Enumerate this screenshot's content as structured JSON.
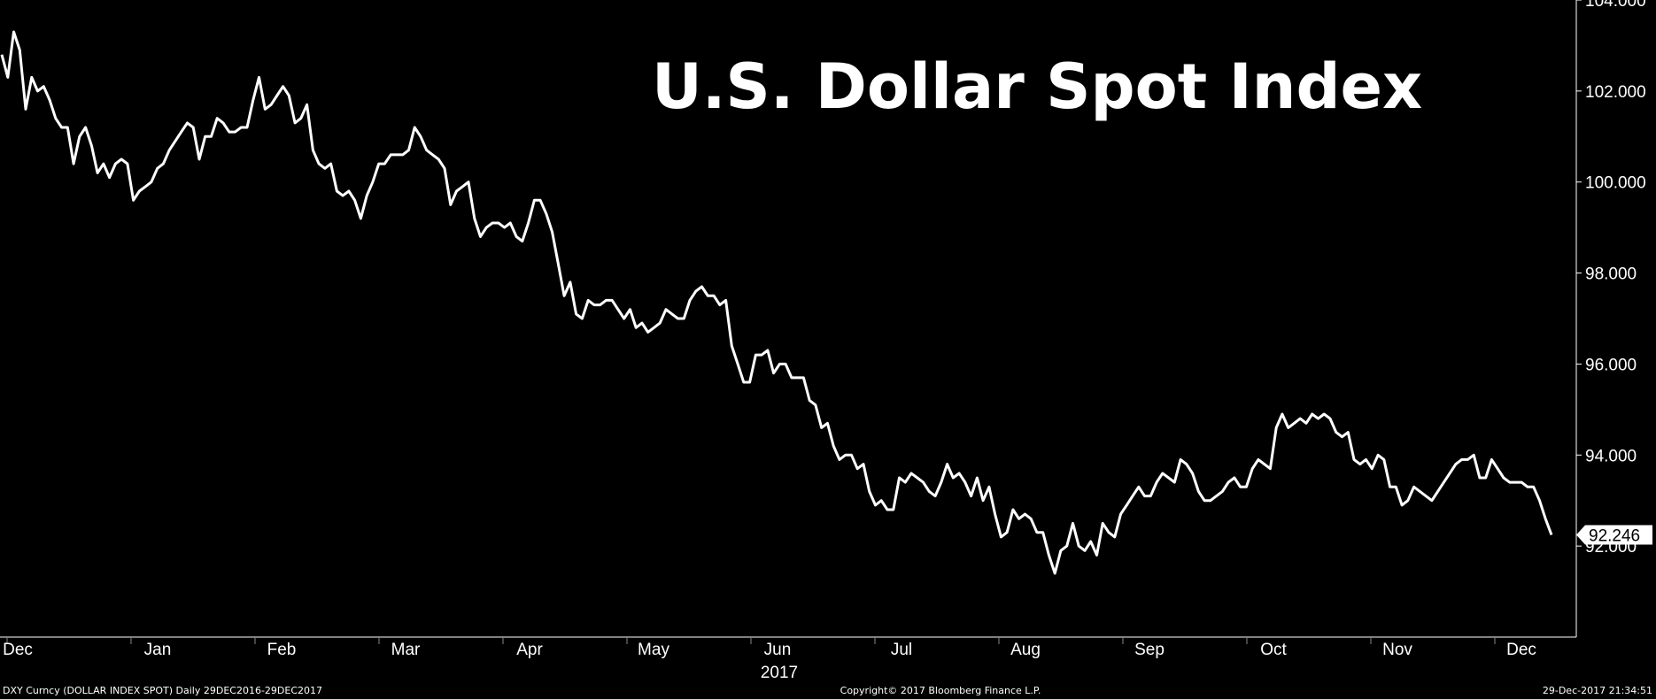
{
  "chart_data": {
    "type": "line",
    "title": "U.S. Dollar Spot Index",
    "year_label": "2017",
    "ylim": [
      90,
      104
    ],
    "y_ticks": [
      {
        "value": 92,
        "label": "92.000"
      },
      {
        "value": 94,
        "label": "94.000"
      },
      {
        "value": 96,
        "label": "96.000"
      },
      {
        "value": 98,
        "label": "98.000"
      },
      {
        "value": 100,
        "label": "100.000"
      },
      {
        "value": 102,
        "label": "102.000"
      },
      {
        "value": 104,
        "label": "104.000"
      }
    ],
    "x_ticks": [
      "Dec",
      "Jan",
      "Feb",
      "Mar",
      "Apr",
      "May",
      "Jun",
      "Jul",
      "Aug",
      "Sep",
      "Oct",
      "Nov",
      "Dec"
    ],
    "last_value_label": "92.246",
    "grid": false,
    "series": [
      {
        "values": [
          102.8,
          102.3,
          103.3,
          102.9,
          101.6,
          102.3,
          102.0,
          102.1,
          101.8,
          101.4,
          101.2,
          101.2,
          100.4,
          101.0,
          101.2,
          100.8,
          100.2,
          100.4,
          100.1,
          100.4,
          100.5,
          100.4,
          99.6,
          99.8,
          99.9,
          100.0,
          100.3,
          100.4,
          100.7,
          100.9,
          101.1,
          101.3,
          101.2,
          100.5,
          101.0,
          101.0,
          101.4,
          101.3,
          101.1,
          101.1,
          101.2,
          101.2,
          101.8,
          102.3,
          101.6,
          101.7,
          101.9,
          102.1,
          101.9,
          101.3,
          101.4,
          101.7,
          100.7,
          100.4,
          100.3,
          100.4,
          99.8,
          99.7,
          99.8,
          99.6,
          99.2,
          99.7,
          100.0,
          100.4,
          100.4,
          100.6,
          100.6,
          100.6,
          100.7,
          101.2,
          101.0,
          100.7,
          100.6,
          100.5,
          100.3,
          99.5,
          99.8,
          99.9,
          100.0,
          99.2,
          98.8,
          99.0,
          99.1,
          99.1,
          99.0,
          99.1,
          98.8,
          98.7,
          99.1,
          99.6,
          99.6,
          99.3,
          98.9,
          98.2,
          97.5,
          97.8,
          97.1,
          97.0,
          97.4,
          97.3,
          97.3,
          97.4,
          97.4,
          97.2,
          97.0,
          97.2,
          96.8,
          96.9,
          96.7,
          96.8,
          96.9,
          97.2,
          97.1,
          97.0,
          97.0,
          97.4,
          97.6,
          97.7,
          97.5,
          97.5,
          97.3,
          97.4,
          96.4,
          96.0,
          95.6,
          95.6,
          96.2,
          96.2,
          96.3,
          95.8,
          96.0,
          96.0,
          95.7,
          95.7,
          95.7,
          95.2,
          95.1,
          94.6,
          94.7,
          94.2,
          93.9,
          94.0,
          94.0,
          93.7,
          93.8,
          93.2,
          92.9,
          93.0,
          92.8,
          92.8,
          93.5,
          93.4,
          93.6,
          93.5,
          93.4,
          93.2,
          93.1,
          93.4,
          93.8,
          93.5,
          93.6,
          93.4,
          93.1,
          93.5,
          93.0,
          93.3,
          92.7,
          92.2,
          92.3,
          92.8,
          92.6,
          92.7,
          92.6,
          92.3,
          92.3,
          91.8,
          91.4,
          91.9,
          92.0,
          92.5,
          92.0,
          91.9,
          92.1,
          91.8,
          92.5,
          92.3,
          92.2,
          92.7,
          92.9,
          93.1,
          93.3,
          93.1,
          93.1,
          93.4,
          93.6,
          93.5,
          93.4,
          93.9,
          93.8,
          93.6,
          93.2,
          93.0,
          93.0,
          93.1,
          93.2,
          93.4,
          93.5,
          93.3,
          93.3,
          93.7,
          93.9,
          93.8,
          93.7,
          94.6,
          94.9,
          94.6,
          94.7,
          94.8,
          94.7,
          94.9,
          94.8,
          94.9,
          94.8,
          94.5,
          94.4,
          94.5,
          93.9,
          93.8,
          93.9,
          93.7,
          94.0,
          93.9,
          93.3,
          93.3,
          92.9,
          93.0,
          93.3,
          93.2,
          93.1,
          93.0,
          93.2,
          93.4,
          93.6,
          93.8,
          93.9,
          93.9,
          94.0,
          93.5,
          93.5,
          93.9,
          93.7,
          93.5,
          93.4,
          93.4,
          93.4,
          93.3,
          93.3,
          93.0,
          92.6,
          92.246
        ]
      }
    ]
  },
  "footer": {
    "left": "DXY Curncy (DOLLAR INDEX SPOT)  Daily 29DEC2016-29DEC2017",
    "center": "Copyright© 2017 Bloomberg Finance L.P.",
    "right": "29-Dec-2017 21:34:51"
  }
}
